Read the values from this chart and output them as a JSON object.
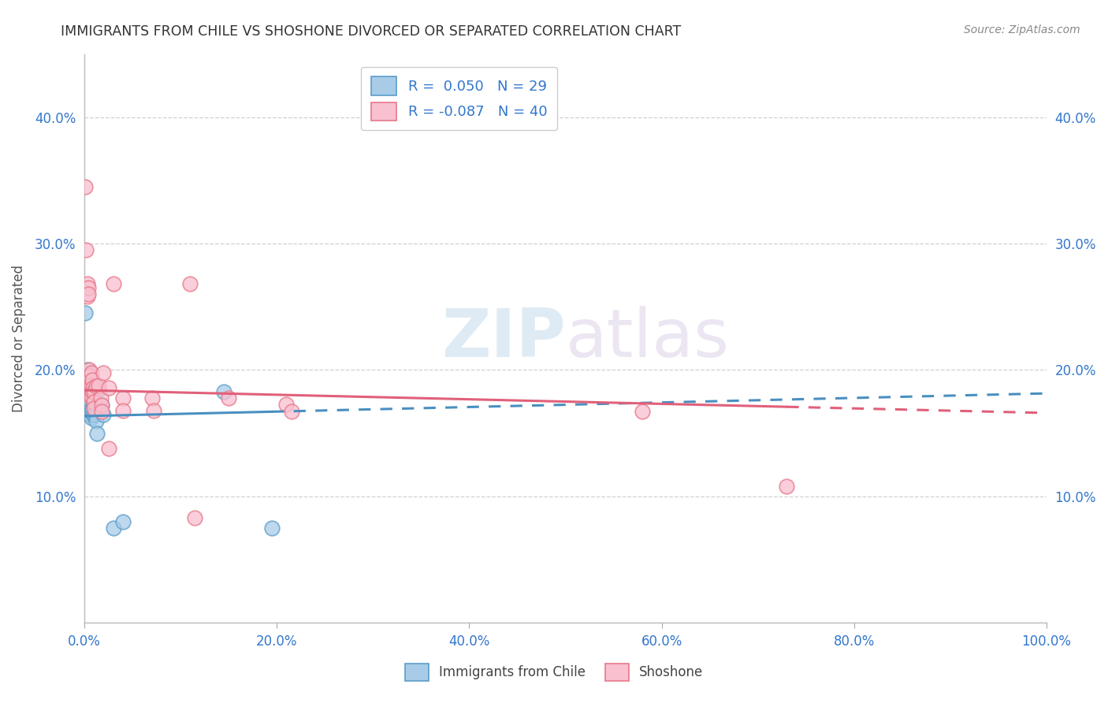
{
  "title": "IMMIGRANTS FROM CHILE VS SHOSHONE DIVORCED OR SEPARATED CORRELATION CHART",
  "source": "Source: ZipAtlas.com",
  "ylabel": "Divorced or Separated",
  "xlim": [
    0.0,
    1.0
  ],
  "ylim": [
    0.0,
    0.45
  ],
  "xticks": [
    0.0,
    0.2,
    0.4,
    0.6,
    0.8,
    1.0
  ],
  "xtick_labels": [
    "0.0%",
    "20.0%",
    "40.0%",
    "60.0%",
    "80.0%",
    "100.0%"
  ],
  "yticks": [
    0.0,
    0.1,
    0.2,
    0.3,
    0.4
  ],
  "ytick_labels": [
    "",
    "10.0%",
    "20.0%",
    "30.0%",
    "40.0%"
  ],
  "legend_r_blue": "0.050",
  "legend_n_blue": "29",
  "legend_r_pink": "-0.087",
  "legend_n_pink": "40",
  "blue_color": "#a8cce8",
  "pink_color": "#f9c0cf",
  "blue_edge_color": "#5b9dc9",
  "pink_edge_color": "#e8788a",
  "blue_line_color": "#4a8fc0",
  "pink_line_color": "#e0607a",
  "blue_scatter": [
    [
      0.001,
      0.245
    ],
    [
      0.002,
      0.195
    ],
    [
      0.002,
      0.185
    ],
    [
      0.003,
      0.2
    ],
    [
      0.003,
      0.19
    ],
    [
      0.003,
      0.185
    ],
    [
      0.004,
      0.185
    ],
    [
      0.004,
      0.18
    ],
    [
      0.004,
      0.175
    ],
    [
      0.005,
      0.175
    ],
    [
      0.005,
      0.17
    ],
    [
      0.005,
      0.165
    ],
    [
      0.006,
      0.175
    ],
    [
      0.006,
      0.168
    ],
    [
      0.007,
      0.17
    ],
    [
      0.007,
      0.162
    ],
    [
      0.008,
      0.168
    ],
    [
      0.009,
      0.165
    ],
    [
      0.01,
      0.172
    ],
    [
      0.011,
      0.165
    ],
    [
      0.012,
      0.16
    ],
    [
      0.013,
      0.15
    ],
    [
      0.015,
      0.185
    ],
    [
      0.018,
      0.172
    ],
    [
      0.02,
      0.165
    ],
    [
      0.03,
      0.075
    ],
    [
      0.04,
      0.08
    ],
    [
      0.145,
      0.183
    ],
    [
      0.195,
      0.075
    ]
  ],
  "pink_scatter": [
    [
      0.001,
      0.345
    ],
    [
      0.002,
      0.295
    ],
    [
      0.003,
      0.268
    ],
    [
      0.003,
      0.258
    ],
    [
      0.004,
      0.265
    ],
    [
      0.004,
      0.26
    ],
    [
      0.005,
      0.2
    ],
    [
      0.005,
      0.188
    ],
    [
      0.006,
      0.195
    ],
    [
      0.006,
      0.185
    ],
    [
      0.006,
      0.18
    ],
    [
      0.007,
      0.198
    ],
    [
      0.007,
      0.188
    ],
    [
      0.007,
      0.18
    ],
    [
      0.008,
      0.192
    ],
    [
      0.008,
      0.183
    ],
    [
      0.009,
      0.186
    ],
    [
      0.01,
      0.183
    ],
    [
      0.01,
      0.175
    ],
    [
      0.01,
      0.17
    ],
    [
      0.012,
      0.187
    ],
    [
      0.015,
      0.188
    ],
    [
      0.017,
      0.178
    ],
    [
      0.018,
      0.172
    ],
    [
      0.018,
      0.167
    ],
    [
      0.02,
      0.198
    ],
    [
      0.025,
      0.186
    ],
    [
      0.025,
      0.138
    ],
    [
      0.03,
      0.268
    ],
    [
      0.04,
      0.178
    ],
    [
      0.04,
      0.168
    ],
    [
      0.07,
      0.178
    ],
    [
      0.072,
      0.168
    ],
    [
      0.11,
      0.268
    ],
    [
      0.115,
      0.083
    ],
    [
      0.15,
      0.178
    ],
    [
      0.21,
      0.173
    ],
    [
      0.215,
      0.167
    ],
    [
      0.58,
      0.167
    ],
    [
      0.73,
      0.108
    ]
  ],
  "watermark_zip": "ZIP",
  "watermark_atlas": "atlas",
  "background_color": "#ffffff",
  "grid_color": "#d0d0d0",
  "blue_line_intercept": 0.1635,
  "blue_line_slope": 0.018,
  "pink_line_intercept": 0.184,
  "pink_line_slope": -0.018
}
